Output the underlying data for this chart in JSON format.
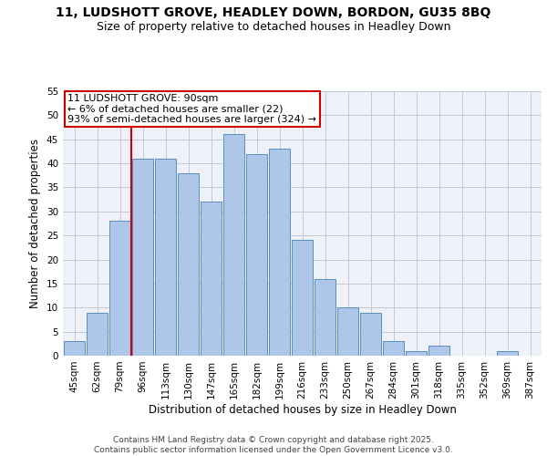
{
  "title1": "11, LUDSHOTT GROVE, HEADLEY DOWN, BORDON, GU35 8BQ",
  "title2": "Size of property relative to detached houses in Headley Down",
  "xlabel": "Distribution of detached houses by size in Headley Down",
  "ylabel": "Number of detached properties",
  "categories": [
    "45sqm",
    "62sqm",
    "79sqm",
    "96sqm",
    "113sqm",
    "130sqm",
    "147sqm",
    "165sqm",
    "182sqm",
    "199sqm",
    "216sqm",
    "233sqm",
    "250sqm",
    "267sqm",
    "284sqm",
    "301sqm",
    "318sqm",
    "335sqm",
    "352sqm",
    "369sqm",
    "387sqm"
  ],
  "values": [
    3,
    9,
    28,
    41,
    41,
    38,
    32,
    46,
    42,
    43,
    24,
    16,
    10,
    9,
    3,
    1,
    2,
    0,
    0,
    1,
    0
  ],
  "bar_color": "#aec6e8",
  "bar_edge_color": "#5a8fc0",
  "grid_color": "#c0c8d8",
  "background_color": "#eef2f8",
  "annotation_box_color": "#ffffff",
  "annotation_border_color": "#cc0000",
  "property_line_color": "#cc0000",
  "property_line_x": 2,
  "annotation_text": "11 LUDSHOTT GROVE: 90sqm\n← 6% of detached houses are smaller (22)\n93% of semi-detached houses are larger (324) →",
  "ylim": [
    0,
    55
  ],
  "yticks": [
    0,
    5,
    10,
    15,
    20,
    25,
    30,
    35,
    40,
    45,
    50,
    55
  ],
  "footer": "Contains HM Land Registry data © Crown copyright and database right 2025.\nContains public sector information licensed under the Open Government Licence v3.0.",
  "title_fontsize": 10,
  "subtitle_fontsize": 9,
  "axis_label_fontsize": 8.5,
  "tick_fontsize": 7.5,
  "annotation_fontsize": 8,
  "footer_fontsize": 6.5
}
